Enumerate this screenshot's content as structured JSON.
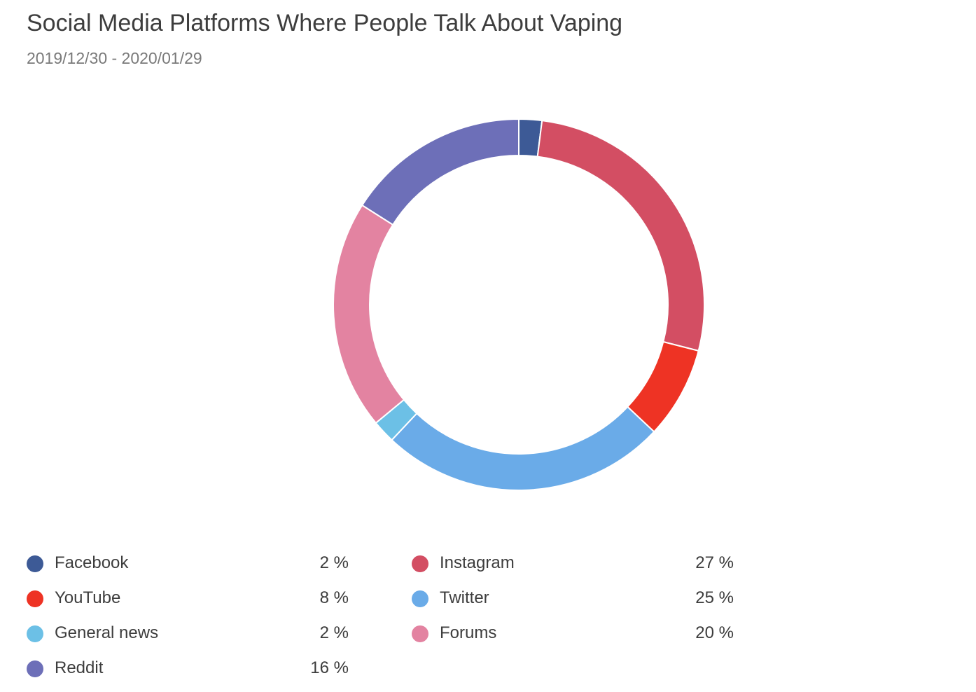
{
  "header": {
    "title": "Social Media Platforms Where People Talk About Vaping",
    "subtitle": "2019/12/30 - 2020/01/29"
  },
  "chart_data": {
    "type": "pie",
    "variant": "donut",
    "title": "Social Media Platforms Where People Talk About Vaping",
    "subtitle": "2019/12/30 - 2020/01/29",
    "unit": "%",
    "legend_position": "bottom",
    "slices": [
      {
        "label": "Facebook",
        "value": 2,
        "display": "2 %",
        "color": "#3d5a96"
      },
      {
        "label": "Instagram",
        "value": 27,
        "display": "27 %",
        "color": "#d34e63"
      },
      {
        "label": "YouTube",
        "value": 8,
        "display": "8 %",
        "color": "#ee3324"
      },
      {
        "label": "Twitter",
        "value": 25,
        "display": "25 %",
        "color": "#6aabe8"
      },
      {
        "label": "General news",
        "value": 2,
        "display": "2 %",
        "color": "#6cc0e6"
      },
      {
        "label": "Forums",
        "value": 20,
        "display": "20 %",
        "color": "#e383a1"
      },
      {
        "label": "Reddit",
        "value": 16,
        "display": "16 %",
        "color": "#6d6fb8"
      }
    ]
  },
  "legend": [
    {
      "label": "Facebook",
      "value": "2 %",
      "color": "#3d5a96"
    },
    {
      "label": "Instagram",
      "value": "27 %",
      "color": "#d34e63"
    },
    {
      "label": "YouTube",
      "value": "8 %",
      "color": "#ee3324"
    },
    {
      "label": "Twitter",
      "value": "25 %",
      "color": "#6aabe8"
    },
    {
      "label": "General news",
      "value": "2 %",
      "color": "#6cc0e6"
    },
    {
      "label": "Forums",
      "value": "20 %",
      "color": "#e383a1"
    },
    {
      "label": "Reddit",
      "value": "16 %",
      "color": "#6d6fb8"
    }
  ]
}
